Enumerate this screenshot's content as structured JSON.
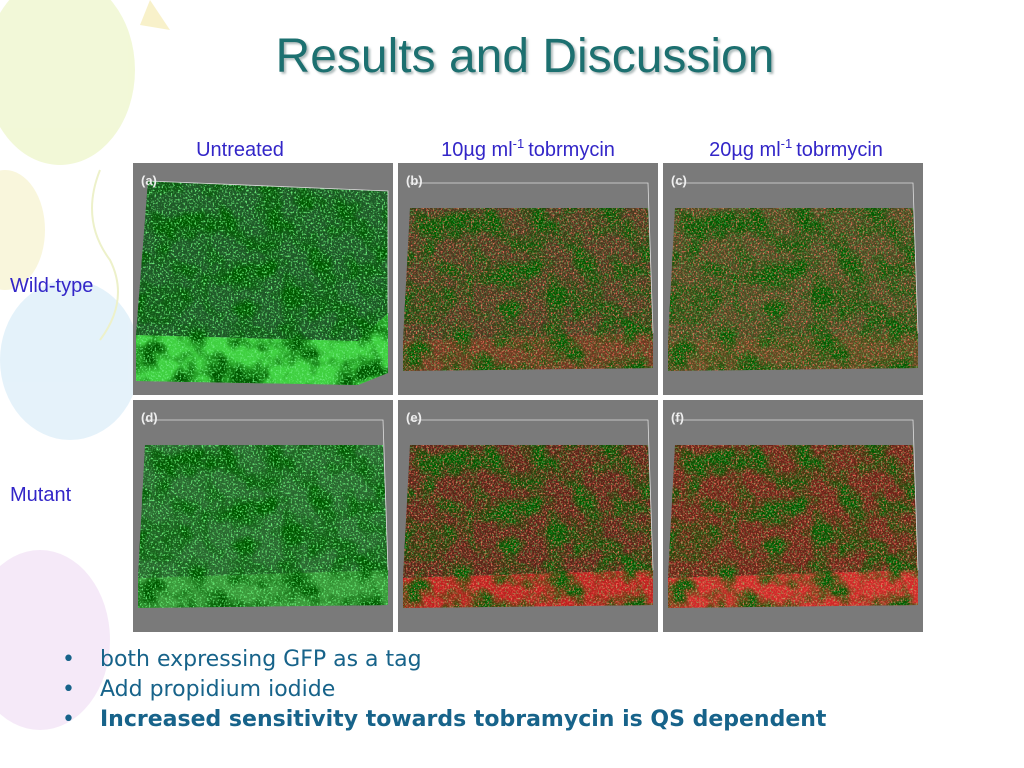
{
  "header": {
    "title": "Results and Discussion"
  },
  "columns": [
    {
      "text": "Untreated"
    },
    {
      "text": "10µg ml",
      "sup": "-1",
      "rest": "tobrmycin"
    },
    {
      "text": "20µg ml",
      "sup": "-1",
      "rest": "tobrmycin"
    }
  ],
  "rows": [
    "Wild-type",
    "Mutant"
  ],
  "panels": [
    "(a)",
    "(b)",
    "(c)",
    "(d)",
    "(e)",
    "(f)"
  ],
  "bullets": [
    {
      "text": "both expressing GFP as a tag",
      "bold": false
    },
    {
      "text": "Add propidium iodide",
      "bold": false
    },
    {
      "text": "Increased sensitivity towards tobramycin is QS dependent",
      "bold": true
    }
  ],
  "bullet_symbol": "•"
}
